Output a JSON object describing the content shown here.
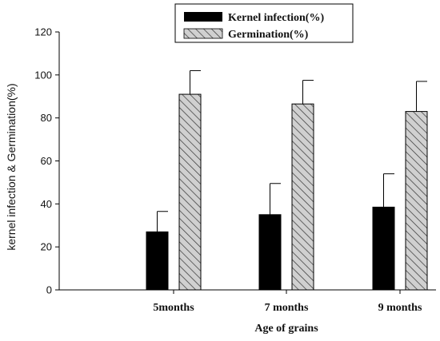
{
  "chart_data": {
    "type": "bar",
    "categories": [
      "5months",
      "7 months",
      "9 months"
    ],
    "series": [
      {
        "name": "Kernel infection(%)",
        "values": [
          27,
          35,
          38.5
        ],
        "errors": [
          9.5,
          14.5,
          15.5
        ],
        "color": "#000000",
        "pattern": "solid"
      },
      {
        "name": "Germination(%)",
        "values": [
          91,
          86.5,
          83
        ],
        "errors": [
          11,
          11,
          14
        ],
        "color": "#c8c8c8",
        "pattern": "diagonal-hatch"
      }
    ],
    "xlabel": "Age of grains",
    "ylabel": "kernel infection & Germination(%)",
    "ylim": [
      0,
      120
    ],
    "yticks": [
      "0",
      "20",
      "40",
      "60",
      "80",
      "100",
      "120"
    ],
    "grid": false,
    "legend_position": "top-center"
  }
}
